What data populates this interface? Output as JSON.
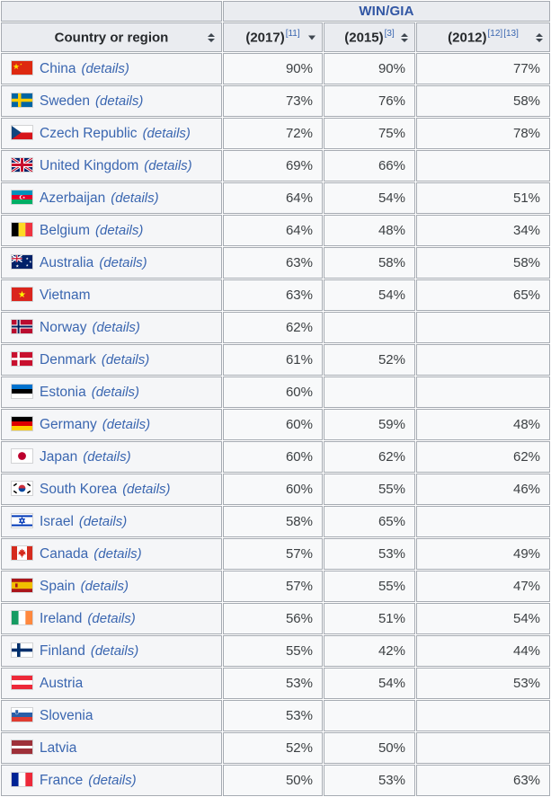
{
  "table": {
    "group_header": "WIN/GIA",
    "details_label": "(details)",
    "columns": [
      {
        "key": "country",
        "label": "Country or region",
        "refs": [],
        "sort": "both"
      },
      {
        "key": "v2017",
        "label": "(2017)",
        "refs": [
          "[11]"
        ],
        "sort": "desc"
      },
      {
        "key": "v2015",
        "label": "(2015)",
        "refs": [
          "[3]"
        ],
        "sort": "both"
      },
      {
        "key": "v2012",
        "label": "(2012)",
        "refs": [
          "[12]",
          "[13]"
        ],
        "sort": "both"
      }
    ],
    "rows": [
      {
        "country": "China",
        "flag": "china",
        "details": true,
        "v2017": "90%",
        "v2015": "90%",
        "v2012": "77%"
      },
      {
        "country": "Sweden",
        "flag": "sweden",
        "details": true,
        "v2017": "73%",
        "v2015": "76%",
        "v2012": "58%"
      },
      {
        "country": "Czech Republic",
        "flag": "czech-republic",
        "details": true,
        "v2017": "72%",
        "v2015": "75%",
        "v2012": "78%"
      },
      {
        "country": "United Kingdom",
        "flag": "united-kingdom",
        "details": true,
        "v2017": "69%",
        "v2015": "66%",
        "v2012": ""
      },
      {
        "country": "Azerbaijan",
        "flag": "azerbaijan",
        "details": true,
        "v2017": "64%",
        "v2015": "54%",
        "v2012": "51%"
      },
      {
        "country": "Belgium",
        "flag": "belgium",
        "details": true,
        "v2017": "64%",
        "v2015": "48%",
        "v2012": "34%"
      },
      {
        "country": "Australia",
        "flag": "australia",
        "details": true,
        "v2017": "63%",
        "v2015": "58%",
        "v2012": "58%"
      },
      {
        "country": "Vietnam",
        "flag": "vietnam",
        "details": false,
        "v2017": "63%",
        "v2015": "54%",
        "v2012": "65%"
      },
      {
        "country": "Norway",
        "flag": "norway",
        "details": true,
        "v2017": "62%",
        "v2015": "",
        "v2012": ""
      },
      {
        "country": "Denmark",
        "flag": "denmark",
        "details": true,
        "v2017": "61%",
        "v2015": "52%",
        "v2012": ""
      },
      {
        "country": "Estonia",
        "flag": "estonia",
        "details": true,
        "v2017": "60%",
        "v2015": "",
        "v2012": ""
      },
      {
        "country": "Germany",
        "flag": "germany",
        "details": true,
        "v2017": "60%",
        "v2015": "59%",
        "v2012": "48%"
      },
      {
        "country": "Japan",
        "flag": "japan",
        "details": true,
        "v2017": "60%",
        "v2015": "62%",
        "v2012": "62%"
      },
      {
        "country": "South Korea",
        "flag": "south-korea",
        "details": true,
        "v2017": "60%",
        "v2015": "55%",
        "v2012": "46%"
      },
      {
        "country": "Israel",
        "flag": "israel",
        "details": true,
        "v2017": "58%",
        "v2015": "65%",
        "v2012": ""
      },
      {
        "country": "Canada",
        "flag": "canada",
        "details": true,
        "v2017": "57%",
        "v2015": "53%",
        "v2012": "49%"
      },
      {
        "country": "Spain",
        "flag": "spain",
        "details": true,
        "v2017": "57%",
        "v2015": "55%",
        "v2012": "47%"
      },
      {
        "country": "Ireland",
        "flag": "ireland",
        "details": true,
        "v2017": "56%",
        "v2015": "51%",
        "v2012": "54%"
      },
      {
        "country": "Finland",
        "flag": "finland",
        "details": true,
        "v2017": "55%",
        "v2015": "42%",
        "v2012": "44%"
      },
      {
        "country": "Austria",
        "flag": "austria",
        "details": false,
        "v2017": "53%",
        "v2015": "54%",
        "v2012": "53%"
      },
      {
        "country": "Slovenia",
        "flag": "slovenia",
        "details": false,
        "v2017": "53%",
        "v2015": "",
        "v2012": ""
      },
      {
        "country": "Latvia",
        "flag": "latvia",
        "details": false,
        "v2017": "52%",
        "v2015": "50%",
        "v2012": ""
      },
      {
        "country": "France",
        "flag": "france",
        "details": true,
        "v2017": "50%",
        "v2015": "53%",
        "v2012": "63%"
      }
    ]
  },
  "colors": {
    "title_blue": "#3156a4",
    "link_blue": "#3a66b0",
    "header_bg": "#eaecf0",
    "country_cell_bg": "#f5f6f8",
    "value_cell_bg": "#f8f9fa",
    "border": "#a6abb2",
    "value_text": "#3c4043"
  }
}
